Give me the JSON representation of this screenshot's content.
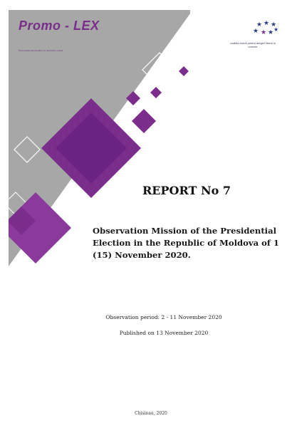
{
  "cover": {
    "organization_logo_text": "Promo - LEX",
    "organization_tagline": "Promovarea democrației și a drepturilor omului",
    "partner_caption": "coaliția civică pentru alegeri libere și corecte"
  },
  "report": {
    "title": "REPORT No 7",
    "subtitle": "Observation Mission of the Presidential Election in the Republic of Moldova of 1 (15) November 2020.",
    "observation_period": "Observation period: 2 - 11 November 2020",
    "published": "Published on 13 November 2020",
    "place_date": "Chisinau, 2020"
  },
  "colors": {
    "accent_purple": "#7b2d8b",
    "dark_purple": "#5a1f6b",
    "grey_band": "#a7a7a7",
    "partner_blue": "#2b3c8c"
  }
}
